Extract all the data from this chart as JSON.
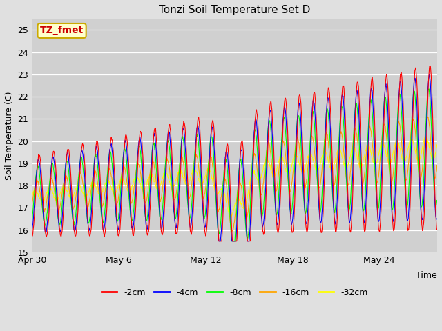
{
  "title": "Tonzi Soil Temperature Set D",
  "ylabel": "Soil Temperature (C)",
  "xlabel": "Time",
  "annotation": "TZ_fmet",
  "ylim": [
    15.0,
    25.5
  ],
  "yticks": [
    15.0,
    16.0,
    17.0,
    18.0,
    19.0,
    20.0,
    21.0,
    22.0,
    23.0,
    24.0,
    25.0
  ],
  "xtick_labels": [
    "Apr 30",
    "May 6",
    "May 12",
    "May 18",
    "May 24"
  ],
  "xtick_pos": [
    0,
    6,
    12,
    18,
    24
  ],
  "xlim": [
    0,
    28
  ],
  "series_colors": [
    "red",
    "blue",
    "lime",
    "orange",
    "yellow"
  ],
  "series_labels": [
    "-2cm",
    "-4cm",
    "-8cm",
    "-16cm",
    "-32cm"
  ],
  "bg_color": "#e0e0e0",
  "plot_bg_color": "#d0d0d0",
  "annotation_bg": "#ffffcc",
  "annotation_border": "#ccaa00",
  "annotation_text_color": "#cc0000",
  "title_fontsize": 11,
  "label_fontsize": 9,
  "tick_fontsize": 9,
  "legend_fontsize": 9,
  "n_days": 28,
  "samples_per_day": 48
}
